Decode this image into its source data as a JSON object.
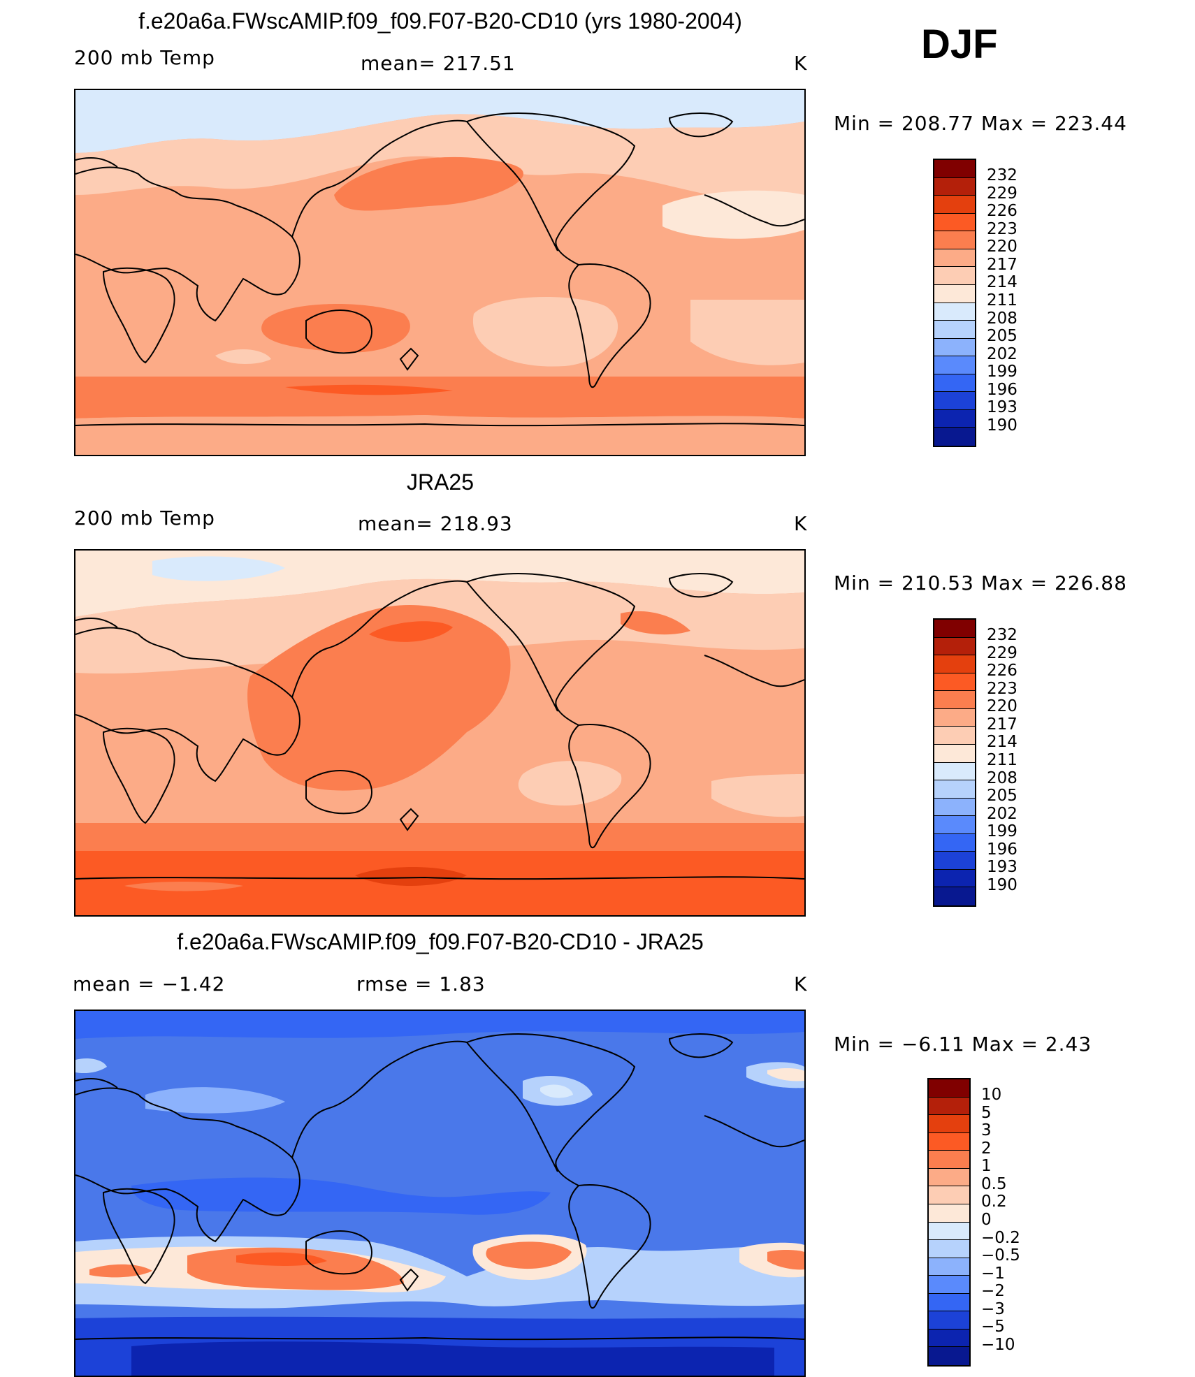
{
  "season": "DJF",
  "units": "K",
  "panels": [
    {
      "title": "f.e20a6a.FWscAMIP.f09_f09.F07-B20-CD10 (yrs 1980-2004)",
      "variable": "200 mb Temp",
      "mean_text": "mean= 217.51",
      "minmax": "Min  =  208.77  Max  =  223.44",
      "background_color": "#fcab87"
    },
    {
      "title": "JRA25",
      "variable": "200 mb Temp",
      "mean_text": "mean= 218.93",
      "minmax": "Min  =  210.53  Max  =  226.88",
      "background_color": "#fcab87"
    },
    {
      "title": "f.e20a6a.FWscAMIP.f09_f09.F07-B20-CD10 - JRA25",
      "mean_text": "mean =    −1.42",
      "rmse_text": "rmse =     1.83",
      "minmax": "Min  =   −6.11  Max  =     2.43",
      "background_color": "#4a78ea"
    }
  ],
  "colorbars": {
    "abs": {
      "labels": [
        "232",
        "229",
        "226",
        "223",
        "220",
        "217",
        "214",
        "211",
        "208",
        "205",
        "202",
        "199",
        "196",
        "193",
        "190"
      ],
      "colors": [
        "#800000",
        "#b4200a",
        "#e4400e",
        "#fc5a24",
        "#fb7e4f",
        "#fcab87",
        "#fdcdb4",
        "#fde8d8",
        "#d9eafc",
        "#b6d2fc",
        "#8cb2fc",
        "#5a8afc",
        "#3466f4",
        "#1c42d8",
        "#0c24b0",
        "#081890"
      ]
    },
    "diff": {
      "labels": [
        "10",
        "5",
        "3",
        "2",
        "1",
        "0.5",
        "0.2",
        "0",
        "−0.2",
        "−0.5",
        "−1",
        "−2",
        "−3",
        "−5",
        "−10"
      ],
      "colors": [
        "#800000",
        "#b4200a",
        "#e4400e",
        "#fc5a24",
        "#fb7e4f",
        "#fcab87",
        "#fdcdb4",
        "#fde8d8",
        "#d9eafc",
        "#b6d2fc",
        "#8cb2fc",
        "#5a8afc",
        "#3466f4",
        "#1c42d8",
        "#0c24b0",
        "#081890"
      ]
    }
  }
}
